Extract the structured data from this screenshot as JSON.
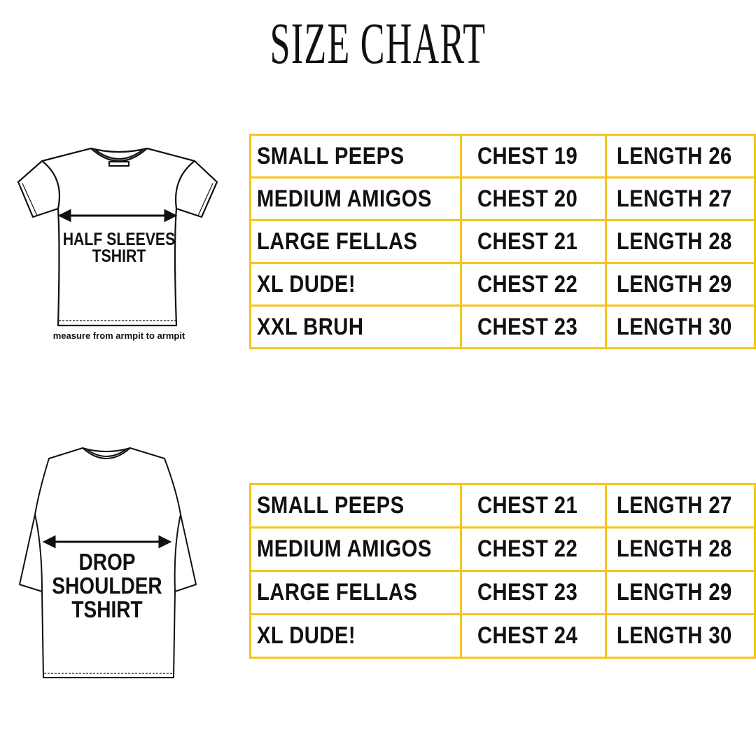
{
  "title": "SIZE CHART",
  "accent_color": "#f5c518",
  "half_sleeves": {
    "label_line1": "HALF SLEEVES",
    "label_line2": "TSHIRT",
    "note": "measure from armpit to armpit",
    "rows": [
      {
        "size": "SMALL PEEPS",
        "chest": "CHEST 19",
        "length": "LENGTH 26"
      },
      {
        "size": "MEDIUM AMIGOS",
        "chest": "CHEST 20",
        "length": "LENGTH 27"
      },
      {
        "size": "LARGE FELLAS",
        "chest": "CHEST 21",
        "length": "LENGTH 28"
      },
      {
        "size": "XL DUDE!",
        "chest": "CHEST 22",
        "length": "LENGTH 29"
      },
      {
        "size": "XXL BRUH",
        "chest": "CHEST 23",
        "length": "LENGTH 30"
      }
    ]
  },
  "drop_shoulder": {
    "label_line1": "DROP",
    "label_line2": "SHOULDER",
    "label_line3": "TSHIRT",
    "rows": [
      {
        "size": "SMALL PEEPS",
        "chest": "CHEST 21",
        "length": "LENGTH 27"
      },
      {
        "size": "MEDIUM AMIGOS",
        "chest": "CHEST 22",
        "length": "LENGTH 28"
      },
      {
        "size": "LARGE FELLAS",
        "chest": "CHEST 23",
        "length": "LENGTH 29"
      },
      {
        "size": "XL DUDE!",
        "chest": "CHEST 24",
        "length": "LENGTH 30"
      }
    ]
  }
}
